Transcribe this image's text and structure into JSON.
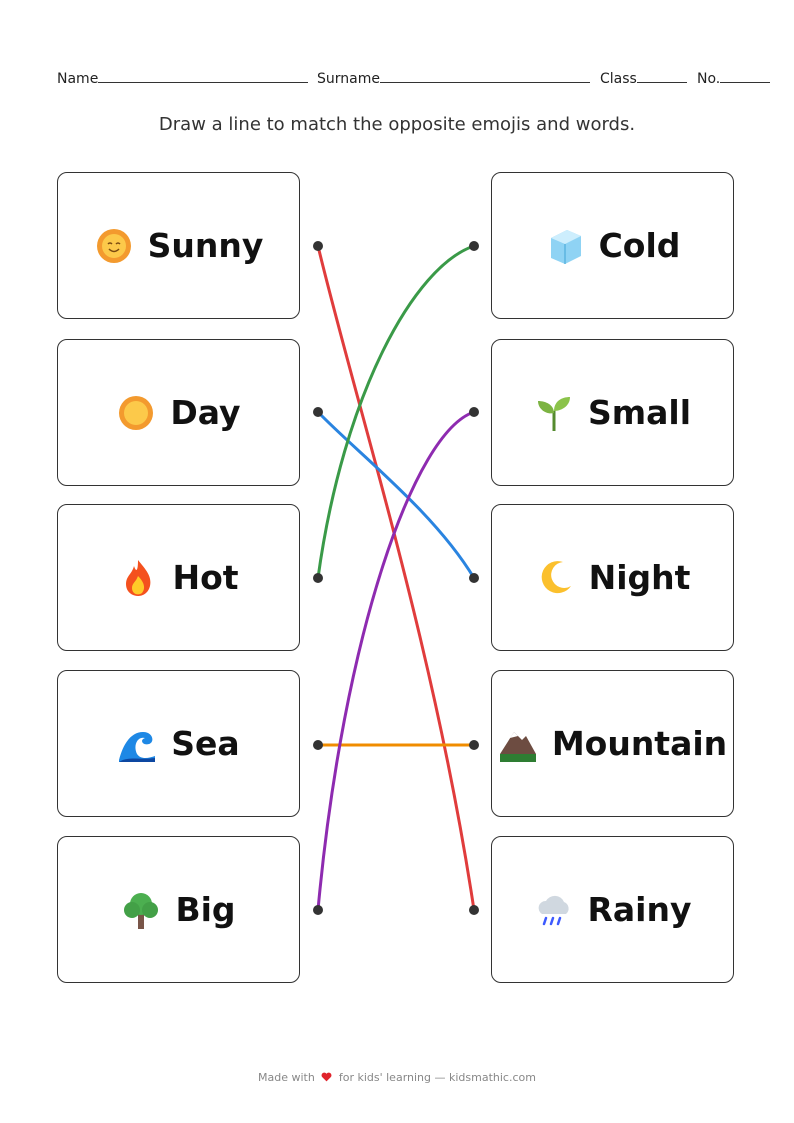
{
  "header": {
    "name_label": "Name",
    "surname_label": "Surname",
    "class_label": "Class",
    "no_label": "No."
  },
  "instruction": "Draw a line to match the opposite emojis and words.",
  "left": [
    {
      "word": "Sunny",
      "icon": "smiling-sun-icon"
    },
    {
      "word": "Day",
      "icon": "sun-icon"
    },
    {
      "word": "Hot",
      "icon": "fire-icon"
    },
    {
      "word": "Sea",
      "icon": "wave-icon"
    },
    {
      "word": "Big",
      "icon": "tree-icon"
    }
  ],
  "right": [
    {
      "word": "Cold",
      "icon": "ice-cube-icon"
    },
    {
      "word": "Small",
      "icon": "seedling-icon"
    },
    {
      "word": "Night",
      "icon": "crescent-moon-icon"
    },
    {
      "word": "Mountain",
      "icon": "mountain-icon"
    },
    {
      "word": "Rainy",
      "icon": "rain-cloud-icon"
    }
  ],
  "matches": [
    {
      "from": "Sunny",
      "to": "Rainy",
      "color": "#e03c3c"
    },
    {
      "from": "Day",
      "to": "Night",
      "color": "#2a84e0"
    },
    {
      "from": "Hot",
      "to": "Cold",
      "color": "#3a9a48"
    },
    {
      "from": "Sea",
      "to": "Mountain",
      "color": "#f08c00"
    },
    {
      "from": "Big",
      "to": "Small",
      "color": "#8e2bb0"
    }
  ],
  "footer": {
    "prefix": "Made with",
    "suffix": "for kids' learning — kidsmathic.com",
    "heart_color": "#e0242c"
  }
}
